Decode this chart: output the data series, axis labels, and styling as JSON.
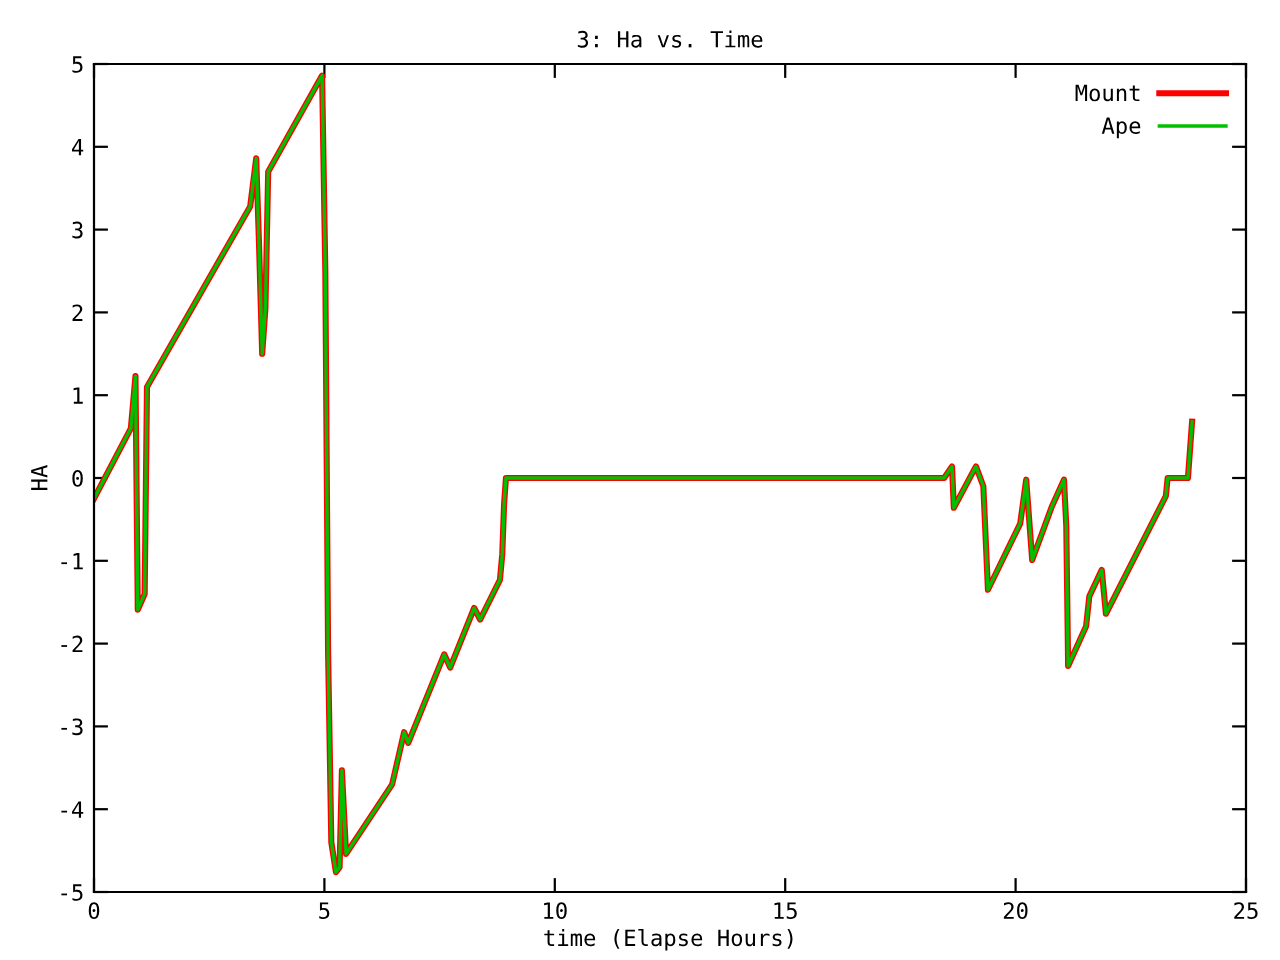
{
  "chart_data": {
    "type": "line",
    "title": "3: Ha vs. Time",
    "xlabel": "time (Elapse Hours)",
    "ylabel": "HA",
    "x": [
      0,
      0.8,
      0.9,
      0.95,
      1.1,
      1.15,
      3.39,
      3.52,
      3.58,
      3.65,
      3.72,
      3.78,
      4.95,
      5.02,
      5.08,
      5.15,
      5.25,
      5.33,
      5.38,
      5.47,
      6.47,
      6.73,
      6.82,
      7.6,
      7.73,
      8.25,
      8.38,
      8.81,
      8.86,
      8.9,
      8.94,
      18.45,
      18.62,
      18.66,
      19.14,
      19.3,
      19.4,
      20.1,
      20.23,
      20.36,
      20.79,
      21.05,
      21.1,
      21.14,
      21.53,
      21.6,
      21.87,
      21.96,
      23.26,
      23.3,
      23.74,
      23.83
    ],
    "series": [
      {
        "name": "Mount",
        "color": "#ff0000",
        "values": [
          -0.25,
          0.6,
          1.23,
          -1.59,
          -1.4,
          1.1,
          3.28,
          3.86,
          2.85,
          1.5,
          2.05,
          3.7,
          4.86,
          2.5,
          -2.1,
          -4.4,
          -4.76,
          -4.7,
          -3.53,
          -4.54,
          -3.7,
          -3.07,
          -3.2,
          -2.13,
          -2.29,
          -1.57,
          -1.71,
          -1.23,
          -0.92,
          -0.31,
          0,
          0,
          0.14,
          -0.36,
          0.14,
          -0.1,
          -1.35,
          -0.55,
          -0.02,
          -0.99,
          -0.34,
          -0.02,
          -0.58,
          -2.27,
          -1.79,
          -1.43,
          -1.11,
          -1.64,
          -0.22,
          0,
          0,
          0.68
        ]
      },
      {
        "name": "Ape",
        "color": "#00c000",
        "values": [
          -0.25,
          0.6,
          1.23,
          -1.59,
          -1.4,
          1.1,
          3.28,
          3.86,
          2.85,
          1.5,
          2.05,
          3.7,
          4.86,
          2.5,
          -2.1,
          -4.4,
          -4.76,
          -4.7,
          -3.53,
          -4.54,
          -3.7,
          -3.07,
          -3.2,
          -2.13,
          -2.29,
          -1.57,
          -1.71,
          -1.23,
          -0.92,
          -0.31,
          0,
          0,
          0.14,
          -0.36,
          0.14,
          -0.1,
          -1.35,
          -0.55,
          -0.02,
          -0.99,
          -0.34,
          -0.02,
          -0.58,
          -2.27,
          -1.79,
          -1.43,
          -1.11,
          -1.64,
          -0.22,
          0,
          0,
          0.68
        ]
      }
    ],
    "xlim": [
      0,
      25
    ],
    "xticks": [
      0,
      5,
      10,
      15,
      20,
      25
    ],
    "ylim": [
      -5,
      5
    ],
    "yticks": [
      -5,
      -4,
      -3,
      -2,
      -1,
      0,
      1,
      2,
      3,
      4,
      5
    ],
    "grid": false,
    "legend": "top right",
    "marker": "none",
    "line_style": "solid"
  }
}
